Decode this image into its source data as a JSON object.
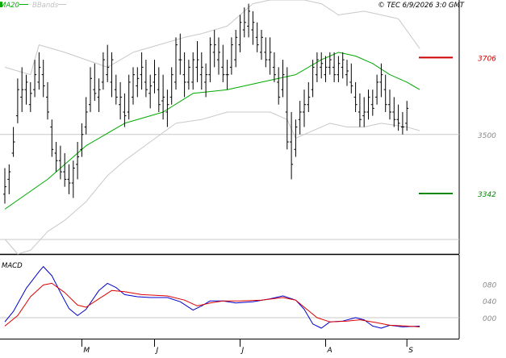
{
  "header": {
    "legend_ma": "MA20",
    "legend_bb": "BBands",
    "credit": "© TEC 6/9/2026 3:0 GMT"
  },
  "colors": {
    "price": "#000000",
    "ma": "#00aa00",
    "bbands": "#c8c8c8",
    "resistance": "#cc0000",
    "support": "#008800",
    "macd": "#0000cc",
    "signal": "#dd0000",
    "grid": "#c8c8c8",
    "axis_text": "#888888"
  },
  "chart_data": [
    {
      "type": "ohlc",
      "title": "",
      "ylim": [
        3180,
        3860
      ],
      "y_ticks": [
        {
          "value": 3500,
          "label": "3500"
        }
      ],
      "grid": true,
      "levels": [
        {
          "name": "resistance",
          "value": 3706,
          "label": "3706"
        },
        {
          "name": "support",
          "value": 3342,
          "label": "3342"
        }
      ],
      "bars": [
        [
          3340,
          3410,
          3315,
          3360
        ],
        [
          3380,
          3420,
          3340,
          3400
        ],
        [
          3450,
          3520,
          3440,
          3480
        ],
        [
          3550,
          3650,
          3530,
          3620
        ],
        [
          3600,
          3680,
          3560,
          3620
        ],
        [
          3620,
          3660,
          3580,
          3640
        ],
        [
          3580,
          3640,
          3560,
          3610
        ],
        [
          3620,
          3700,
          3600,
          3660
        ],
        [
          3640,
          3720,
          3620,
          3680
        ],
        [
          3660,
          3700,
          3600,
          3630
        ],
        [
          3600,
          3640,
          3540,
          3560
        ],
        [
          3520,
          3540,
          3440,
          3460
        ],
        [
          3450,
          3480,
          3400,
          3430
        ],
        [
          3430,
          3470,
          3380,
          3400
        ],
        [
          3400,
          3450,
          3360,
          3380
        ],
        [
          3380,
          3420,
          3340,
          3370
        ],
        [
          3370,
          3430,
          3330,
          3410
        ],
        [
          3420,
          3480,
          3380,
          3440
        ],
        [
          3460,
          3530,
          3440,
          3500
        ],
        [
          3520,
          3600,
          3500,
          3560
        ],
        [
          3580,
          3680,
          3560,
          3650
        ],
        [
          3620,
          3690,
          3590,
          3610
        ],
        [
          3600,
          3650,
          3560,
          3620
        ],
        [
          3640,
          3720,
          3620,
          3700
        ],
        [
          3660,
          3740,
          3640,
          3680
        ],
        [
          3640,
          3720,
          3600,
          3700
        ],
        [
          3620,
          3660,
          3580,
          3600
        ],
        [
          3580,
          3640,
          3540,
          3600
        ],
        [
          3560,
          3610,
          3520,
          3550
        ],
        [
          3560,
          3660,
          3540,
          3640
        ],
        [
          3600,
          3680,
          3580,
          3660
        ],
        [
          3630,
          3680,
          3600,
          3650
        ],
        [
          3660,
          3720,
          3620,
          3680
        ],
        [
          3640,
          3700,
          3600,
          3620
        ],
        [
          3610,
          3660,
          3570,
          3630
        ],
        [
          3640,
          3700,
          3610,
          3660
        ],
        [
          3620,
          3680,
          3560,
          3580
        ],
        [
          3590,
          3660,
          3540,
          3600
        ],
        [
          3560,
          3620,
          3520,
          3580
        ],
        [
          3600,
          3680,
          3580,
          3660
        ],
        [
          3640,
          3760,
          3620,
          3740
        ],
        [
          3700,
          3770,
          3660,
          3700
        ],
        [
          3660,
          3720,
          3600,
          3640
        ],
        [
          3640,
          3700,
          3620,
          3680
        ],
        [
          3640,
          3720,
          3620,
          3700
        ],
        [
          3680,
          3750,
          3640,
          3700
        ],
        [
          3660,
          3720,
          3620,
          3680
        ],
        [
          3640,
          3690,
          3600,
          3660
        ],
        [
          3660,
          3760,
          3640,
          3740
        ],
        [
          3720,
          3780,
          3680,
          3740
        ],
        [
          3700,
          3760,
          3660,
          3720
        ],
        [
          3680,
          3740,
          3640,
          3660
        ],
        [
          3660,
          3700,
          3620,
          3660
        ],
        [
          3680,
          3760,
          3660,
          3740
        ],
        [
          3700,
          3780,
          3680,
          3760
        ],
        [
          3740,
          3820,
          3720,
          3800
        ],
        [
          3780,
          3840,
          3760,
          3800
        ],
        [
          3790,
          3850,
          3760,
          3830
        ],
        [
          3780,
          3830,
          3740,
          3800
        ],
        [
          3760,
          3800,
          3720,
          3740
        ],
        [
          3720,
          3780,
          3700,
          3760
        ],
        [
          3720,
          3760,
          3680,
          3700
        ],
        [
          3700,
          3760,
          3660,
          3720
        ],
        [
          3680,
          3720,
          3640,
          3660
        ],
        [
          3640,
          3680,
          3580,
          3600
        ],
        [
          3620,
          3700,
          3600,
          3660
        ],
        [
          3560,
          3680,
          3460,
          3480
        ],
        [
          3480,
          3560,
          3380,
          3420
        ],
        [
          3460,
          3540,
          3440,
          3520
        ],
        [
          3540,
          3590,
          3500,
          3560
        ],
        [
          3560,
          3620,
          3520,
          3580
        ],
        [
          3580,
          3640,
          3560,
          3600
        ],
        [
          3620,
          3700,
          3600,
          3680
        ],
        [
          3660,
          3720,
          3640,
          3700
        ],
        [
          3680,
          3720,
          3650,
          3690
        ],
        [
          3660,
          3710,
          3640,
          3680
        ],
        [
          3680,
          3720,
          3660,
          3700
        ],
        [
          3680,
          3720,
          3640,
          3660
        ],
        [
          3660,
          3710,
          3640,
          3690
        ],
        [
          3680,
          3720,
          3650,
          3700
        ],
        [
          3660,
          3700,
          3630,
          3670
        ],
        [
          3640,
          3690,
          3610,
          3630
        ],
        [
          3600,
          3640,
          3560,
          3580
        ],
        [
          3560,
          3610,
          3520,
          3540
        ],
        [
          3550,
          3600,
          3520,
          3560
        ],
        [
          3560,
          3620,
          3540,
          3600
        ],
        [
          3580,
          3620,
          3550,
          3570
        ],
        [
          3600,
          3660,
          3580,
          3640
        ],
        [
          3640,
          3690,
          3600,
          3660
        ],
        [
          3620,
          3660,
          3560,
          3580
        ],
        [
          3580,
          3620,
          3540,
          3560
        ],
        [
          3560,
          3600,
          3520,
          3540
        ],
        [
          3540,
          3580,
          3510,
          3530
        ],
        [
          3520,
          3560,
          3500,
          3520
        ],
        [
          3530,
          3590,
          3510,
          3570
        ]
      ],
      "ma20": [
        [
          0,
          3300
        ],
        [
          10,
          3380
        ],
        [
          19,
          3470
        ],
        [
          28,
          3530
        ],
        [
          37,
          3560
        ],
        [
          44,
          3610
        ],
        [
          52,
          3620
        ],
        [
          60,
          3640
        ],
        [
          68,
          3660
        ],
        [
          74,
          3700
        ],
        [
          78,
          3720
        ],
        [
          82,
          3710
        ],
        [
          86,
          3690
        ],
        [
          90,
          3660
        ],
        [
          94,
          3640
        ],
        [
          97,
          3620
        ]
      ],
      "bb_upper": [
        [
          0,
          3680
        ],
        [
          6,
          3660
        ],
        [
          8,
          3740
        ],
        [
          14,
          3720
        ],
        [
          19,
          3700
        ],
        [
          24,
          3680
        ],
        [
          30,
          3720
        ],
        [
          36,
          3740
        ],
        [
          42,
          3760
        ],
        [
          46,
          3770
        ],
        [
          52,
          3790
        ],
        [
          58,
          3850
        ],
        [
          62,
          3860
        ],
        [
          70,
          3860
        ],
        [
          74,
          3850
        ],
        [
          78,
          3820
        ],
        [
          84,
          3830
        ],
        [
          88,
          3820
        ],
        [
          92,
          3810
        ],
        [
          97,
          3730
        ]
      ],
      "bb_lower": [
        [
          0,
          3220
        ],
        [
          3,
          3180
        ],
        [
          6,
          3190
        ],
        [
          10,
          3240
        ],
        [
          14,
          3270
        ],
        [
          19,
          3320
        ],
        [
          24,
          3390
        ],
        [
          28,
          3430
        ],
        [
          34,
          3480
        ],
        [
          40,
          3530
        ],
        [
          46,
          3540
        ],
        [
          52,
          3560
        ],
        [
          58,
          3560
        ],
        [
          62,
          3560
        ],
        [
          66,
          3540
        ],
        [
          68,
          3490
        ],
        [
          72,
          3510
        ],
        [
          76,
          3530
        ],
        [
          80,
          3520
        ],
        [
          84,
          3520
        ],
        [
          88,
          3530
        ],
        [
          94,
          3520
        ],
        [
          97,
          3510
        ]
      ]
    },
    {
      "type": "line",
      "title": "MACD",
      "ylim": [
        -50,
        150
      ],
      "y_ticks": [
        {
          "value": 80,
          "label": "080"
        },
        {
          "value": 40,
          "label": "040"
        },
        {
          "value": 0,
          "label": "000"
        }
      ],
      "zero_line": 0,
      "series": [
        {
          "name": "macd",
          "points": [
            [
              0,
              -10
            ],
            [
              2,
              15
            ],
            [
              5,
              70
            ],
            [
              8,
              110
            ],
            [
              9,
              122
            ],
            [
              11,
              100
            ],
            [
              13,
              60
            ],
            [
              15,
              22
            ],
            [
              17,
              5
            ],
            [
              19,
              20
            ],
            [
              22,
              65
            ],
            [
              24,
              82
            ],
            [
              26,
              72
            ],
            [
              28,
              55
            ],
            [
              31,
              50
            ],
            [
              34,
              48
            ],
            [
              38,
              48
            ],
            [
              41,
              38
            ],
            [
              44,
              18
            ],
            [
              46,
              28
            ],
            [
              48,
              40
            ],
            [
              51,
              40
            ],
            [
              54,
              35
            ],
            [
              58,
              38
            ],
            [
              62,
              45
            ],
            [
              65,
              52
            ],
            [
              68,
              42
            ],
            [
              70,
              20
            ],
            [
              72,
              -15
            ],
            [
              74,
              -25
            ],
            [
              76,
              -10
            ],
            [
              79,
              -8
            ],
            [
              82,
              0
            ],
            [
              84,
              -5
            ],
            [
              86,
              -20
            ],
            [
              88,
              -25
            ],
            [
              90,
              -18
            ],
            [
              93,
              -22
            ],
            [
              97,
              -20
            ]
          ]
        },
        {
          "name": "signal",
          "points": [
            [
              0,
              -20
            ],
            [
              3,
              5
            ],
            [
              6,
              50
            ],
            [
              9,
              78
            ],
            [
              11,
              82
            ],
            [
              14,
              60
            ],
            [
              17,
              30
            ],
            [
              19,
              25
            ],
            [
              22,
              45
            ],
            [
              25,
              65
            ],
            [
              28,
              62
            ],
            [
              32,
              55
            ],
            [
              38,
              52
            ],
            [
              42,
              42
            ],
            [
              45,
              28
            ],
            [
              48,
              35
            ],
            [
              51,
              40
            ],
            [
              55,
              40
            ],
            [
              60,
              42
            ],
            [
              65,
              48
            ],
            [
              68,
              42
            ],
            [
              70,
              25
            ],
            [
              73,
              0
            ],
            [
              76,
              -10
            ],
            [
              80,
              -8
            ],
            [
              83,
              -5
            ],
            [
              87,
              -12
            ],
            [
              90,
              -18
            ],
            [
              94,
              -20
            ],
            [
              97,
              -22
            ]
          ]
        }
      ]
    }
  ],
  "x_axis": {
    "ticks": [
      {
        "bar": 18,
        "label": "M"
      },
      {
        "bar": 35,
        "label": "J"
      },
      {
        "bar": 55,
        "label": "J"
      },
      {
        "bar": 75,
        "label": "A"
      },
      {
        "bar": 94,
        "label": "S"
      }
    ]
  }
}
